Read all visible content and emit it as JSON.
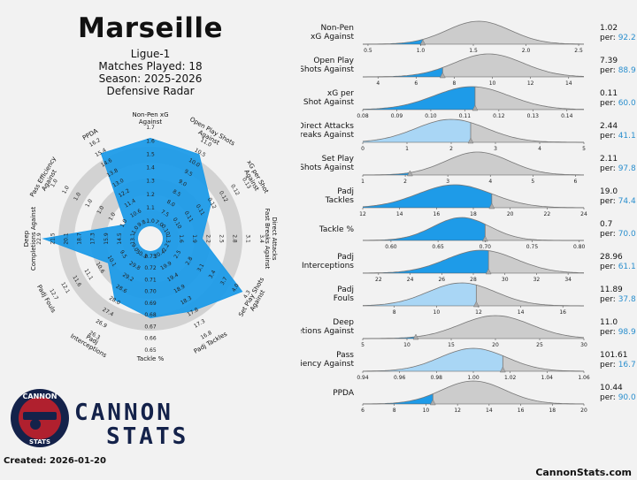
{
  "header": {
    "team": "Marseille",
    "league": "Ligue-1",
    "matches": "Matches Played: 18",
    "season": "Season: 2025-2026",
    "subtitle": "Defensive Radar"
  },
  "brand": {
    "logo_top": "CANNON",
    "logo_bottom": "STATS",
    "name_line1": "CANNON",
    "name_line2": "STATS",
    "created": "Created: 2026-01-20",
    "site": "CannonStats.com"
  },
  "colors": {
    "blue": "#1e9be8",
    "lightblue": "#a9d6f5",
    "gray": "#cccccc",
    "ring": "#d2d2d2",
    "line": "#777777",
    "pct": "#2b8fce",
    "navy": "#14224a",
    "red": "#b0202e"
  },
  "chart_data": [
    {
      "type": "radar",
      "title": "Defensive Radar",
      "axes": [
        {
          "label": "Non-Pen xG\nAgainst",
          "ticks": [
            "1.0",
            "1.1",
            "1.2",
            "1.3",
            "1.4",
            "1.5",
            "1.6",
            "1.7"
          ],
          "percentile": 92.2
        },
        {
          "label": "Open Play Shots\nAgainst",
          "ticks": [
            "7.0",
            "7.5",
            "8.0",
            "8.5",
            "9.0",
            "9.5",
            "10.0",
            "10.5",
            "11.0"
          ],
          "percentile": 88.9
        },
        {
          "label": "xG per Shot\nAgainst",
          "ticks": [
            "0.10",
            "0.10",
            "0.11",
            "0.11",
            "0.12",
            "0.12",
            "0.12",
            "0.13"
          ],
          "percentile": 60.0
        },
        {
          "label": "Direct Attacks\nFast Breaks Against",
          "ticks": [
            "1.3",
            "1.6",
            "1.9",
            "2.2",
            "2.5",
            "2.8",
            "3.1",
            "3.4"
          ],
          "percentile": 41.1
        },
        {
          "label": "Set Play Shots\nAgainst",
          "ticks": [
            "2.2",
            "2.5",
            "2.8",
            "3.1",
            "3.4",
            "3.7",
            "4.0",
            "4.3"
          ],
          "percentile": 97.8
        },
        {
          "label": "Padj Tackles",
          "ticks": [
            "20.4",
            "19.9",
            "19.4",
            "18.9",
            "18.3",
            "17.8",
            "17.3",
            "16.8"
          ],
          "percentile": 74.4
        },
        {
          "label": "Tackle %",
          "ticks": [
            "0.73",
            "0.72",
            "0.71",
            "0.70",
            "0.69",
            "0.68",
            "0.67",
            "0.66",
            "0.65"
          ],
          "percentile": 70.0
        },
        {
          "label": "Padj\nInterceptions",
          "ticks": [
            "30.3",
            "29.8",
            "29.2",
            "28.6",
            "28.0",
            "27.4",
            "26.9",
            "26.3"
          ],
          "percentile": 61.1
        },
        {
          "label": "Padj Fouls",
          "ticks": [
            "9.0",
            "9.5",
            "10.1",
            "10.6",
            "11.1",
            "11.6",
            "12.1",
            "12.7"
          ],
          "percentile": 37.8
        },
        {
          "label": "Deep\nCompletions Against",
          "ticks": [
            "13.1",
            "14.5",
            "15.9",
            "17.3",
            "18.7",
            "20.1",
            "21.5",
            "22.9"
          ],
          "percentile": 98.9
        },
        {
          "label": "Pass Efficiency\nAgainst",
          "ticks": [
            "1.0",
            "1.0",
            "1.0",
            "1.0",
            "1.0",
            "1.0",
            "1.0",
            "1.0"
          ],
          "percentile": 16.7
        },
        {
          "label": "PPDA",
          "ticks": [
            "9.8",
            "10.6",
            "11.4",
            "12.2",
            "13.0",
            "13.8",
            "14.6",
            "15.4",
            "16.2"
          ],
          "percentile": 90.0
        }
      ]
    },
    {
      "type": "distribution",
      "metrics": [
        {
          "label": "Non-Pen\nxG Against",
          "value": "1.02",
          "per_label": "per:",
          "percentile": "92.2",
          "pct": 92.2,
          "xmin": 0.45,
          "xmax": 2.55,
          "ticks": [
            "0.5",
            "1.0",
            "1.5",
            "2.0",
            "2.5"
          ],
          "mean": 1.55,
          "sd": 0.3,
          "marker": 1.02,
          "lighter": false
        },
        {
          "label": "Open Play\nShots Against",
          "value": "7.39",
          "per_label": "per:",
          "percentile": "88.9",
          "pct": 88.9,
          "xmin": 3.2,
          "xmax": 14.8,
          "ticks": [
            "4",
            "6",
            "8",
            "10",
            "12",
            "14"
          ],
          "mean": 9.8,
          "sd": 1.8,
          "marker": 7.39,
          "lighter": false
        },
        {
          "label": "xG per\nShot Against",
          "value": "0.11",
          "per_label": "per:",
          "percentile": "60.0",
          "pct": 60.0,
          "xmin": 0.08,
          "xmax": 0.145,
          "ticks": [
            "0.08",
            "0.09",
            "0.10",
            "0.11",
            "0.12",
            "0.13",
            "0.14"
          ],
          "mean": 0.112,
          "sd": 0.011,
          "marker": 0.113,
          "lighter": false
        },
        {
          "label": "Direct Attacks\nFast Breaks Against",
          "value": "2.44",
          "per_label": "per:",
          "percentile": "41.1",
          "pct": 41.1,
          "xmin": 0,
          "xmax": 5,
          "ticks": [
            "0",
            "1",
            "2",
            "3",
            "4",
            "5"
          ],
          "mean": 2.0,
          "sd": 0.8,
          "marker": 2.44,
          "lighter": true
        },
        {
          "label": "Set Play\nShots Against",
          "value": "2.11",
          "per_label": "per:",
          "percentile": "97.8",
          "pct": 97.8,
          "xmin": 1,
          "xmax": 6.2,
          "ticks": [
            "1",
            "2",
            "3",
            "4",
            "5",
            "6"
          ],
          "mean": 3.7,
          "sd": 0.75,
          "marker": 2.11,
          "lighter": false
        },
        {
          "label": "Padj\nTackles",
          "value": "19.0",
          "per_label": "per:",
          "percentile": "74.4",
          "pct": 74.4,
          "xmin": 12,
          "xmax": 24,
          "ticks": [
            "12",
            "14",
            "16",
            "18",
            "20",
            "22",
            "24"
          ],
          "mean": 17.0,
          "sd": 2.0,
          "marker": 19.0,
          "lighter": false
        },
        {
          "label": "Tackle %",
          "value": "0.7",
          "per_label": "per:",
          "percentile": "70.0",
          "pct": 70.0,
          "xmin": 0.57,
          "xmax": 0.805,
          "ticks": [
            "0.60",
            "0.65",
            "0.70",
            "0.75",
            "0.80"
          ],
          "mean": 0.675,
          "sd": 0.03,
          "marker": 0.7,
          "lighter": false
        },
        {
          "label": "Padj\nInterceptions",
          "value": "28.96",
          "per_label": "per:",
          "percentile": "61.1",
          "pct": 61.1,
          "xmin": 21,
          "xmax": 35,
          "ticks": [
            "22",
            "24",
            "26",
            "28",
            "30",
            "32",
            "34"
          ],
          "mean": 28.5,
          "sd": 2.2,
          "marker": 28.96,
          "lighter": false
        },
        {
          "label": "Padj\nFouls",
          "value": "11.89",
          "per_label": "per:",
          "percentile": "37.8",
          "pct": 37.8,
          "xmin": 6.5,
          "xmax": 17,
          "ticks": [
            "8",
            "10",
            "12",
            "14",
            "16"
          ],
          "mean": 11.2,
          "sd": 1.6,
          "marker": 11.89,
          "lighter": true
        },
        {
          "label": "Deep\nCompletions Against",
          "value": "11.0",
          "per_label": "per:",
          "percentile": "98.9",
          "pct": 98.9,
          "xmin": 5,
          "xmax": 30,
          "ticks": [
            "5",
            "10",
            "15",
            "20",
            "25",
            "30"
          ],
          "mean": 20.0,
          "sd": 4.0,
          "marker": 11.0,
          "lighter": false
        },
        {
          "label": "Pass\nEfficiency Against",
          "value": "101.61",
          "per_label": "per:",
          "percentile": "16.7",
          "pct": 16.7,
          "xmin": 0.94,
          "xmax": 1.06,
          "ticks": [
            "0.94",
            "0.96",
            "0.98",
            "1.00",
            "1.02",
            "1.04",
            "1.06"
          ],
          "mean": 1.0,
          "sd": 0.018,
          "marker": 1.016,
          "lighter": true
        },
        {
          "label": "PPDA",
          "value": "10.44",
          "per_label": "per:",
          "percentile": "90.0",
          "pct": 90.0,
          "xmin": 6,
          "xmax": 20,
          "ticks": [
            "6",
            "8",
            "10",
            "12",
            "14",
            "16",
            "18",
            "20"
          ],
          "mean": 13.0,
          "sd": 2.0,
          "marker": 10.44,
          "lighter": false
        }
      ]
    }
  ]
}
